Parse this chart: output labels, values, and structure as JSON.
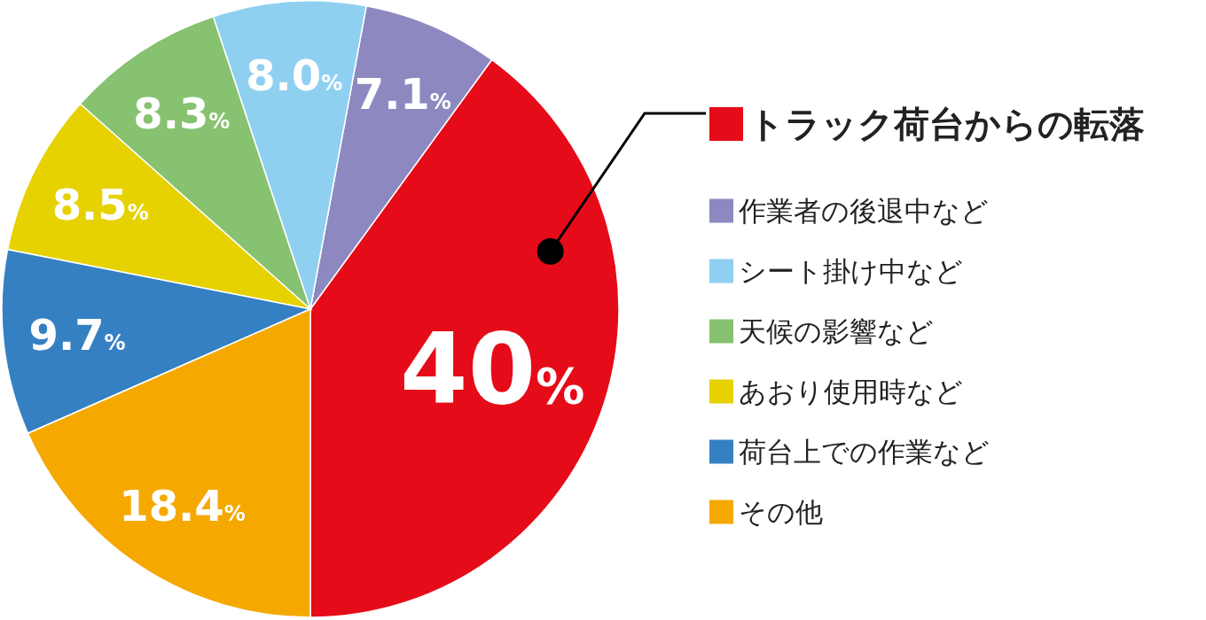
{
  "chart_data": {
    "type": "pie",
    "categories": [
      "トラック荷台からの転落",
      "作業者の後退中など",
      "シート掛け中など",
      "天候の影響など",
      "あおり使用時など",
      "荷台上での作業など",
      "その他"
    ],
    "values": [
      40,
      7.1,
      8.0,
      8.3,
      8.5,
      9.7,
      18.4
    ],
    "colors": [
      "#e60b18",
      "#8d89c0",
      "#8fd0f0",
      "#86c26f",
      "#e6d200",
      "#3580c3",
      "#f5a900"
    ],
    "value_labels": [
      "40%",
      "7.1%",
      "8.0%",
      "8.3%",
      "8.5%",
      "9.7%",
      "18.4%"
    ],
    "legend": "right"
  }
}
